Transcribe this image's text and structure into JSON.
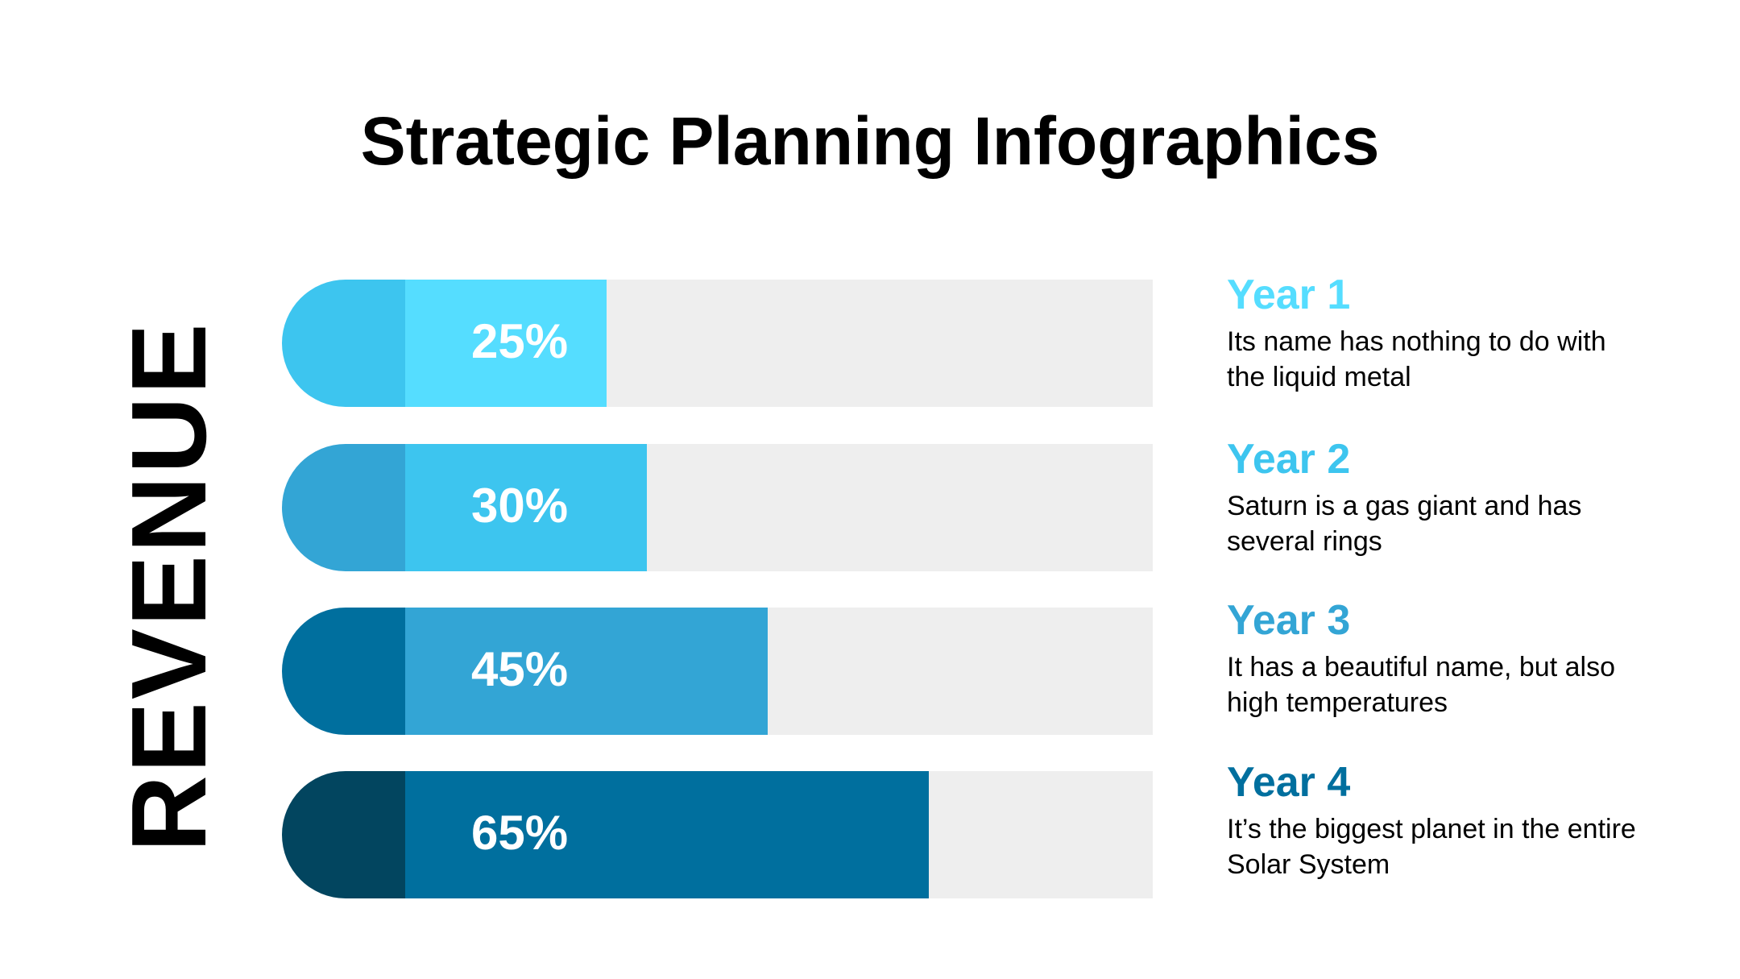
{
  "chart_data": {
    "type": "bar",
    "orientation": "horizontal",
    "title": "Strategic Planning Infographics",
    "ylabel": "REVENUE",
    "xlim": [
      0,
      100
    ],
    "unit": "%",
    "categories": [
      "Year 1",
      "Year 2",
      "Year 3",
      "Year 4"
    ],
    "values": [
      25,
      30,
      45,
      65
    ],
    "value_labels": [
      "25%",
      "30%",
      "45%",
      "65%"
    ],
    "descriptions": [
      "Its name has nothing to do with the liquid metal",
      "Saturn is a gas giant and has several rings",
      "It has a beautiful name, but also high temperatures",
      "It’s the biggest planet in the entire Solar System"
    ],
    "colors": {
      "track": "#EEEEEE",
      "bar": [
        "#55DDFF",
        "#3DC5EF",
        "#33A5D5",
        "#006F9E"
      ],
      "cap": [
        "#3DC5EF",
        "#33A5D5",
        "#006F9E",
        "#02455F"
      ],
      "label": [
        "#55DDFF",
        "#3DC5EF",
        "#33A5D5",
        "#006F9E"
      ],
      "value_text": "#FFFFFF"
    }
  }
}
